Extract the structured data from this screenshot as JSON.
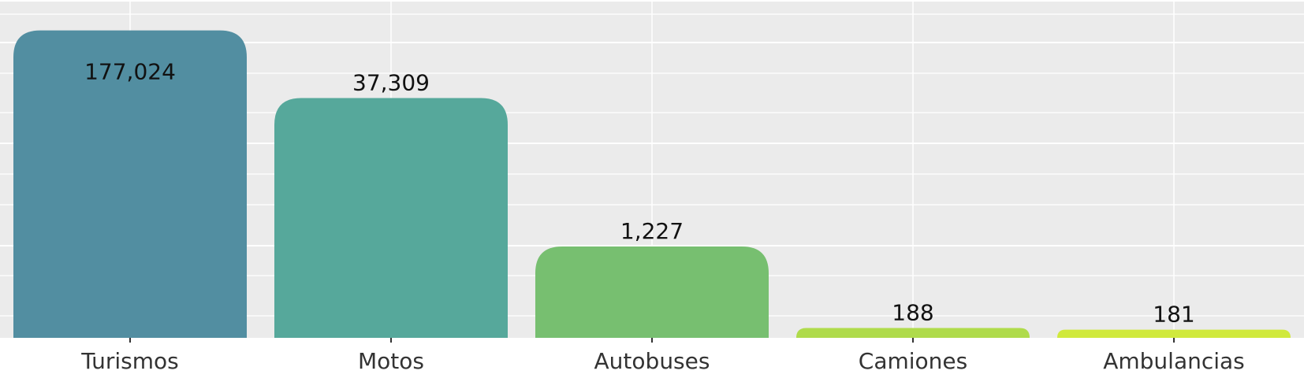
{
  "chart_data": {
    "type": "bar",
    "scale": "log",
    "categories": [
      "Turismos",
      "Motos",
      "Autobuses",
      "Camiones",
      "Ambulancias"
    ],
    "values": [
      177024,
      37309,
      1227,
      188,
      181
    ],
    "value_labels": [
      "177,024",
      "37,309",
      "1,227",
      "188",
      "181"
    ],
    "colors": [
      "#528EA1",
      "#56A89B",
      "#77BF70",
      "#AFDB4B",
      "#D0E93C"
    ],
    "grid": true,
    "legend": "none",
    "background": "#EBEBEB",
    "title": "",
    "xlabel": "",
    "ylabel": ""
  }
}
